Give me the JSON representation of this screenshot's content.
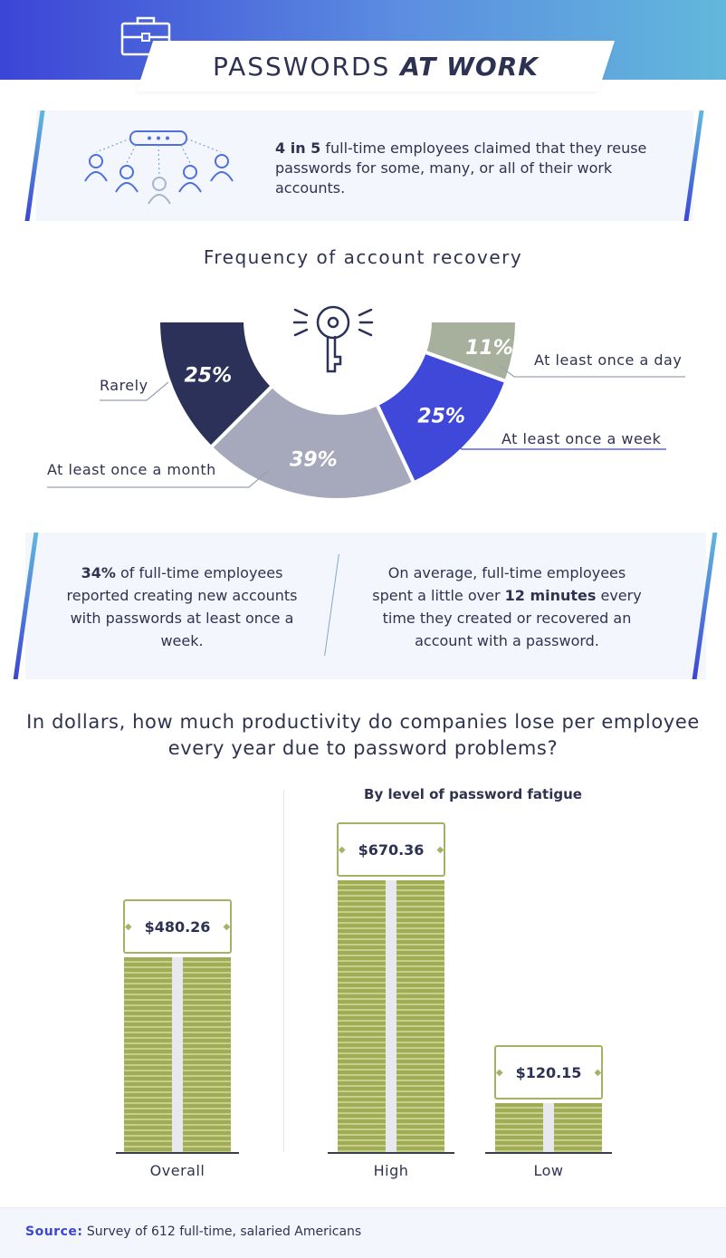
{
  "header": {
    "title_light": "PASSWORDS",
    "title_bold": "AT WORK"
  },
  "intro": {
    "bold": "4 in 5",
    "text": " full-time employees claimed that they reuse passwords for some, many, or all of their work accounts."
  },
  "recovery": {
    "title": "Frequency of account recovery"
  },
  "stats": {
    "left": {
      "bold": "34%",
      "text": " of full-time employees reported creating new accounts with passwords at least once a week."
    },
    "right": {
      "pre": "On average, full-time employees spent a little over ",
      "bold": "12 minutes",
      "post": " every time they created or recovered an account with a password."
    }
  },
  "productivity": {
    "question_line1": "In dollars, how much productivity do companies lose per employee",
    "question_line2": "every year due to password problems?",
    "fatigue_title": "By level of password fatigue"
  },
  "footer": {
    "source_label": "Source:",
    "source_text": "Survey of 612 full-time, salaried Americans"
  },
  "colors": {
    "header_gradient_start": "#3c45d6",
    "header_gradient_end": "#62b8dc",
    "rarely": "#2c3159",
    "monthly": "#a6a9bb",
    "weekly": "#3f48d8",
    "daily": "#a7b09c",
    "money": "#a0ad56"
  },
  "icons": [
    "briefcase-icon",
    "people-network-icon",
    "key-icon",
    "diamond-icon"
  ],
  "chart_data": [
    {
      "type": "pie",
      "title": "Frequency of account recovery",
      "categories": [
        "Rarely",
        "At least once a month",
        "At least once a week",
        "At least once a day"
      ],
      "values": [
        25,
        39,
        25,
        11
      ],
      "value_labels": [
        "25%",
        "39%",
        "25%",
        "11%"
      ],
      "unit": "%",
      "style": "half-donut"
    },
    {
      "type": "bar",
      "title": "In dollars, how much productivity do companies lose per employee every year due to password problems?",
      "categories": [
        "Overall",
        "High",
        "Low"
      ],
      "values": [
        480.26,
        670.36,
        120.15
      ],
      "value_labels": [
        "$480.26",
        "$670.36",
        "$120.15"
      ],
      "group_label": "By level of password fatigue",
      "group_members": [
        "High",
        "Low"
      ],
      "unit": "$",
      "ylim": [
        0,
        670.36
      ]
    }
  ]
}
